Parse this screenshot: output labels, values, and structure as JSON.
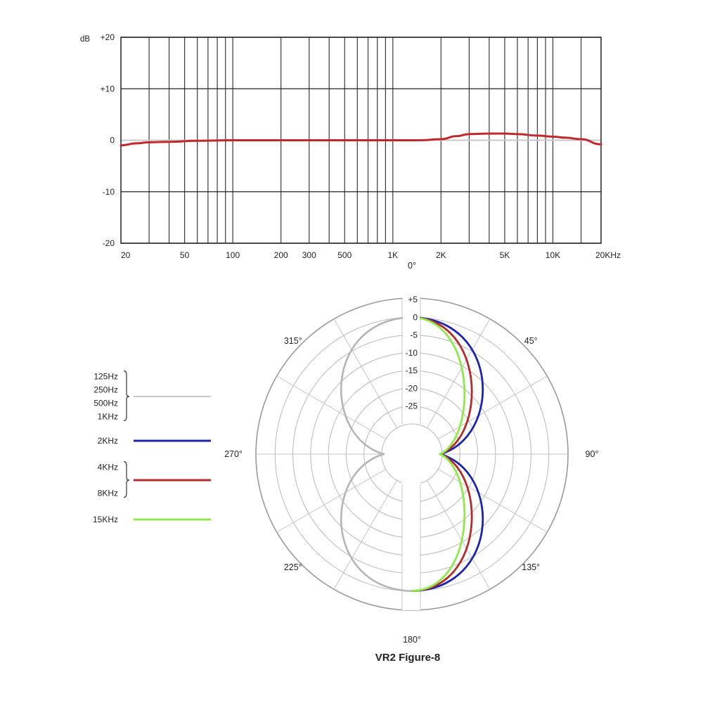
{
  "chart_data": [
    {
      "type": "line",
      "subtype": "frequency-response",
      "x_scale": "log",
      "xlim": [
        20,
        20000
      ],
      "ylim": [
        -20,
        20
      ],
      "ylabel": "dB",
      "y_ticks": [
        {
          "value": 20,
          "label": "+20"
        },
        {
          "value": 10,
          "label": "+10"
        },
        {
          "value": 0,
          "label": "0"
        },
        {
          "value": -10,
          "label": "-10"
        },
        {
          "value": -20,
          "label": "-20"
        }
      ],
      "x_tick_labels": [
        {
          "value": 20,
          "label": "20"
        },
        {
          "value": 50,
          "label": "50"
        },
        {
          "value": 100,
          "label": "100"
        },
        {
          "value": 200,
          "label": "200"
        },
        {
          "value": 300,
          "label": "300"
        },
        {
          "value": 500,
          "label": "500"
        },
        {
          "value": 1000,
          "label": "1K"
        },
        {
          "value": 2000,
          "label": "2K"
        },
        {
          "value": 5000,
          "label": "5K"
        },
        {
          "value": 10000,
          "label": "10K"
        },
        {
          "value": 20000,
          "label": "20KHz"
        }
      ],
      "grid_x": [
        30,
        40,
        50,
        60,
        70,
        80,
        90,
        100,
        200,
        300,
        400,
        500,
        600,
        700,
        800,
        900,
        1000,
        2000,
        3000,
        4000,
        5000,
        6000,
        7000,
        8000,
        9000,
        10000,
        15000
      ],
      "grid": true,
      "series": [
        {
          "color": "#c0282d",
          "x": [
            20,
            25,
            30,
            40,
            60,
            100,
            200,
            500,
            1000,
            1500,
            2000,
            2500,
            3000,
            4000,
            5000,
            6000,
            8000,
            10000,
            12000,
            15000,
            20000
          ],
          "y": [
            -1.0,
            -0.6,
            -0.4,
            -0.3,
            -0.1,
            0.0,
            0.0,
            0.0,
            0.0,
            0.0,
            0.2,
            0.8,
            1.2,
            1.3,
            1.3,
            1.2,
            0.9,
            0.7,
            0.5,
            0.2,
            -0.8
          ]
        }
      ]
    },
    {
      "type": "polar",
      "subtype": "figure-8",
      "title": "VR2 Figure-8",
      "r_ticks": [
        {
          "value": 5,
          "label": "+5"
        },
        {
          "value": 0,
          "label": "0"
        },
        {
          "value": -5,
          "label": "-5"
        },
        {
          "value": -10,
          "label": "-10"
        },
        {
          "value": -15,
          "label": "-15"
        },
        {
          "value": -20,
          "label": "-20"
        },
        {
          "value": -25,
          "label": "-25"
        }
      ],
      "r_range": [
        -30,
        5
      ],
      "angle_labels": [
        {
          "deg": 0,
          "label": "0°"
        },
        {
          "deg": 45,
          "label": "45°"
        },
        {
          "deg": 90,
          "label": "90°"
        },
        {
          "deg": 135,
          "label": "135°"
        },
        {
          "deg": 180,
          "label": "180°"
        },
        {
          "deg": 225,
          "label": "225°"
        },
        {
          "deg": 270,
          "label": "270°"
        },
        {
          "deg": 315,
          "label": "315°"
        }
      ],
      "series": [
        {
          "legend": [
            "125Hz",
            "250Hz",
            "500Hz",
            "1KHz"
          ],
          "color": "#b5b5b5",
          "shape": "figure-8",
          "lobe_width": 0.54,
          "side": "left"
        },
        {
          "legend": [
            "2KHz"
          ],
          "color": "#1b24b0",
          "shape": "figure-8",
          "lobe_width": 0.54,
          "side": "right"
        },
        {
          "legend": [
            "4KHz",
            "8KHz"
          ],
          "color": "#b52a2a",
          "shape": "figure-8",
          "lobe_width": 0.45,
          "side": "right"
        },
        {
          "legend": [
            "15KHz"
          ],
          "color": "#8eea4a",
          "shape": "figure-8",
          "lobe_width": 0.39,
          "side": "right"
        }
      ]
    }
  ]
}
